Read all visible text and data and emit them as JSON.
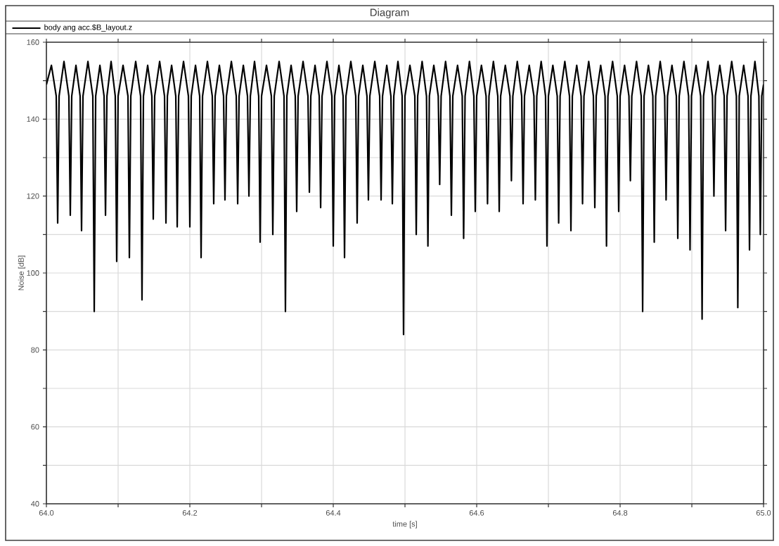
{
  "chart_data": {
    "type": "line",
    "title": "Diagram",
    "xlabel": "time [s]",
    "ylabel": "Noise [dB]",
    "xlim": [
      64.0,
      65.0
    ],
    "ylim": [
      40,
      160
    ],
    "xticks": [
      {
        "value": 64.0,
        "label": "64.0"
      },
      {
        "value": 64.1,
        "label": null
      },
      {
        "value": 64.2,
        "label": "64.2"
      },
      {
        "value": 64.3,
        "label": null
      },
      {
        "value": 64.4,
        "label": "64.4"
      },
      {
        "value": 64.5,
        "label": null
      },
      {
        "value": 64.6,
        "label": "64.6"
      },
      {
        "value": 64.7,
        "label": null
      },
      {
        "value": 64.8,
        "label": "64.8"
      },
      {
        "value": 64.9,
        "label": null
      },
      {
        "value": 65.0,
        "label": "65.0"
      }
    ],
    "yticks": [
      40,
      {
        "value": 50,
        "label": null
      },
      60,
      {
        "value": 70,
        "label": null
      },
      80,
      {
        "value": 90,
        "label": null
      },
      100,
      {
        "value": 110,
        "label": null
      },
      120,
      {
        "value": 130,
        "label": null
      },
      140,
      {
        "value": 150,
        "label": null
      },
      160
    ],
    "grid": true,
    "legend": "top left",
    "series": [
      {
        "name": "body ang acc.$B_layout.z",
        "color": "#000000",
        "x": [
          64.0,
          64.007,
          64.0137,
          64.0157,
          64.0177,
          64.0245,
          64.0313,
          64.0333,
          64.0353,
          64.0412,
          64.047,
          64.049,
          64.051,
          64.0579,
          64.0647,
          64.0667,
          64.0687,
          64.0746,
          64.0804,
          64.0824,
          64.0844,
          64.0902,
          64.096,
          64.098,
          64.1,
          64.1069,
          64.1137,
          64.1157,
          64.1177,
          64.1245,
          64.1313,
          64.1333,
          64.1353,
          64.1412,
          64.147,
          64.149,
          64.151,
          64.1579,
          64.1647,
          64.1667,
          64.1687,
          64.1746,
          64.1804,
          64.1824,
          64.1844,
          64.1912,
          64.198,
          64.2,
          64.202,
          64.2079,
          64.2137,
          64.2157,
          64.2177,
          64.2245,
          64.2313,
          64.2333,
          64.2353,
          64.2412,
          64.247,
          64.249,
          64.251,
          64.2579,
          64.2647,
          64.2667,
          64.2687,
          64.2746,
          64.2804,
          64.2824,
          64.2844,
          64.2902,
          64.296,
          64.298,
          64.3,
          64.3069,
          64.3137,
          64.3157,
          64.3177,
          64.3245,
          64.3313,
          64.3333,
          64.3353,
          64.3412,
          64.347,
          64.349,
          64.351,
          64.3579,
          64.3647,
          64.3667,
          64.3687,
          64.3746,
          64.3804,
          64.3824,
          64.3844,
          64.3912,
          64.398,
          64.4,
          64.402,
          64.4079,
          64.4137,
          64.4157,
          64.4177,
          64.4245,
          64.4313,
          64.4333,
          64.4353,
          64.4412,
          64.447,
          64.449,
          64.451,
          64.4579,
          64.4647,
          64.4667,
          64.4687,
          64.4746,
          64.4804,
          64.4824,
          64.4844,
          64.4902,
          64.496,
          64.498,
          64.5,
          64.5069,
          64.5137,
          64.5157,
          64.5177,
          64.5239,
          64.53,
          64.532,
          64.534,
          64.5402,
          64.5464,
          64.5484,
          64.5504,
          64.5566,
          64.5627,
          64.5647,
          64.5667,
          64.5733,
          64.5798,
          64.5818,
          64.5838,
          64.5899,
          64.596,
          64.598,
          64.6,
          64.6066,
          64.6131,
          64.6151,
          64.6171,
          64.6233,
          64.6294,
          64.6314,
          64.6334,
          64.6399,
          64.6464,
          64.6484,
          64.6504,
          64.6566,
          64.6627,
          64.6647,
          64.6667,
          64.6733,
          64.6798,
          64.6818,
          64.6838,
          64.6899,
          64.696,
          64.698,
          64.7,
          64.7062,
          64.7123,
          64.7143,
          64.7163,
          64.7229,
          64.7294,
          64.7314,
          64.7334,
          64.7395,
          64.7456,
          64.7476,
          64.7496,
          64.7562,
          64.7627,
          64.7647,
          64.7667,
          64.7729,
          64.779,
          64.781,
          64.783,
          64.7895,
          64.796,
          64.798,
          64.8,
          64.8062,
          64.8123,
          64.8143,
          64.8163,
          64.8229,
          64.8294,
          64.8314,
          64.8334,
          64.8395,
          64.8456,
          64.8476,
          64.8496,
          64.8559,
          64.8621,
          64.8641,
          64.8661,
          64.8723,
          64.8784,
          64.8804,
          64.8824,
          64.889,
          64.8955,
          64.8975,
          64.8995,
          64.9059,
          64.9123,
          64.9143,
          64.9163,
          64.9226,
          64.9288,
          64.9308,
          64.9328,
          64.939,
          64.9451,
          64.9471,
          64.9491,
          64.9556,
          64.9621,
          64.9641,
          64.9661,
          64.9723,
          64.9784,
          64.9804,
          64.9824,
          64.988,
          64.9935,
          64.9955,
          64.9975,
          65.0
        ],
        "values": [
          149,
          154,
          146,
          113,
          146,
          155,
          146,
          115,
          146,
          154,
          146,
          111,
          146,
          155,
          146,
          90,
          146,
          154,
          146,
          115,
          146,
          155,
          146,
          103,
          146,
          154,
          146,
          104,
          146,
          155,
          146,
          93,
          146,
          154,
          146,
          114,
          146,
          155,
          146,
          113,
          146,
          154,
          146,
          112,
          146,
          155,
          146,
          112,
          146,
          154,
          146,
          104,
          146,
          155,
          146,
          118,
          146,
          154,
          146,
          119,
          146,
          155,
          146,
          118,
          146,
          154,
          146,
          120,
          146,
          155,
          146,
          108,
          146,
          154,
          146,
          110,
          146,
          155,
          146,
          90,
          146,
          154,
          146,
          116,
          146,
          155,
          146,
          121,
          146,
          154,
          146,
          117,
          146,
          155,
          146,
          107,
          146,
          154,
          146,
          104,
          146,
          155,
          146,
          113,
          146,
          154,
          146,
          119,
          146,
          155,
          146,
          119,
          146,
          154,
          146,
          118,
          146,
          155,
          146,
          84,
          146,
          154,
          146,
          110,
          146,
          155,
          146,
          107,
          146,
          154,
          146,
          123,
          146,
          155,
          146,
          115,
          146,
          154,
          146,
          109,
          146,
          155,
          146,
          116,
          146,
          154,
          146,
          118,
          146,
          155,
          146,
          116,
          146,
          154,
          146,
          124,
          146,
          155,
          146,
          118,
          146,
          154,
          146,
          119,
          146,
          155,
          146,
          107,
          146,
          154,
          146,
          113,
          146,
          155,
          146,
          111,
          146,
          154,
          146,
          118,
          146,
          155,
          146,
          117,
          146,
          154,
          146,
          107,
          146,
          155,
          146,
          116,
          146,
          154,
          146,
          124,
          146,
          155,
          146,
          90,
          146,
          154,
          146,
          108,
          146,
          155,
          146,
          119,
          146,
          154,
          146,
          109,
          146,
          155,
          146,
          106,
          146,
          154,
          146,
          88,
          146,
          155,
          146,
          120,
          146,
          154,
          146,
          111,
          146,
          155,
          146,
          91,
          146,
          154,
          146,
          106,
          146,
          155,
          146,
          110,
          146,
          149
        ]
      }
    ]
  }
}
